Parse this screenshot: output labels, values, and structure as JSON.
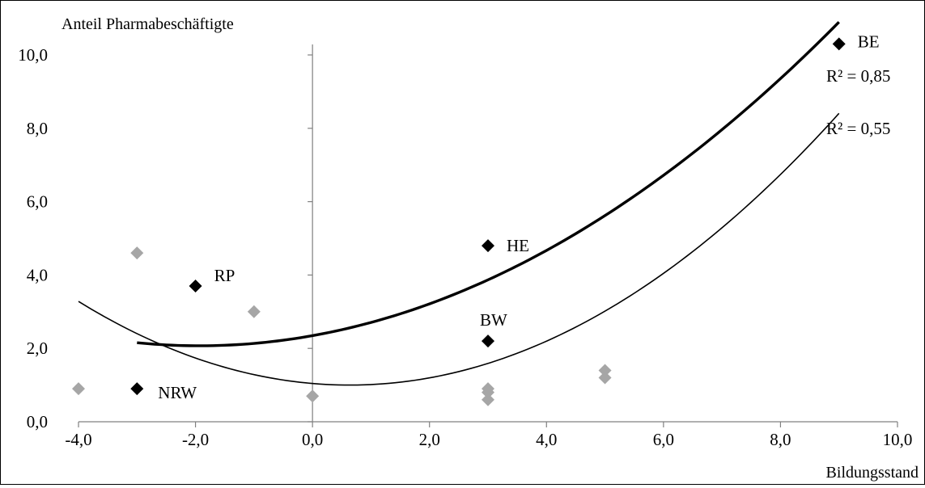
{
  "chart_data": {
    "type": "scatter",
    "title": "",
    "xlabel": "Bildungsstand",
    "ylabel": "Anteil Pharmabeschäftigte",
    "xlim": [
      -4,
      10
    ],
    "ylim": [
      0,
      10
    ],
    "xticks": [
      -4,
      -2,
      0,
      2,
      4,
      6,
      8,
      10
    ],
    "xtick_labels": [
      "-4,0",
      "-2,0",
      "0,0",
      "2,0",
      "4,0",
      "6,0",
      "8,0",
      "10,0"
    ],
    "yticks": [
      0,
      2,
      4,
      6,
      8,
      10
    ],
    "ytick_labels": [
      "0,0",
      "2,0",
      "4,0",
      "6,0",
      "8,0",
      "10,0"
    ],
    "grid": false,
    "colors": {
      "highlighted": "#000000",
      "other": "#a6a6a6"
    },
    "series": [
      {
        "role": "highlighted",
        "marker": "diamond",
        "points": [
          {
            "label": "BE",
            "x": 9.0,
            "y": 10.3
          },
          {
            "label": "HE",
            "x": 3.0,
            "y": 4.8
          },
          {
            "label": "RP",
            "x": -2.0,
            "y": 3.7
          },
          {
            "label": "BW",
            "x": 3.0,
            "y": 2.2
          },
          {
            "label": "NRW",
            "x": -3.0,
            "y": 0.9
          }
        ]
      },
      {
        "role": "other",
        "marker": "diamond",
        "points": [
          {
            "x": -4.0,
            "y": 0.9
          },
          {
            "x": -3.0,
            "y": 4.6
          },
          {
            "x": -1.0,
            "y": 3.0
          },
          {
            "x": 0.0,
            "y": 0.7
          },
          {
            "x": 3.0,
            "y": 0.9
          },
          {
            "x": 3.0,
            "y": 0.8
          },
          {
            "x": 3.0,
            "y": 0.6
          },
          {
            "x": 5.0,
            "y": 1.4
          },
          {
            "x": 5.0,
            "y": 1.2
          }
        ]
      }
    ],
    "trendlines": [
      {
        "type": "polynomial-2",
        "label": "R² = 0,85",
        "style": "thick",
        "x_range": [
          -3.0,
          9.0
        ],
        "coefficients": {
          "a": 0.0738,
          "b": 0.2856,
          "c": 2.3474
        }
      },
      {
        "type": "polynomial-2",
        "label": "R² = 0,55",
        "style": "thin",
        "x_range": [
          -4.0,
          9.0
        ],
        "coefficients": {
          "a": 0.10595,
          "b": -0.13535,
          "c": 1.04325
        }
      }
    ]
  }
}
